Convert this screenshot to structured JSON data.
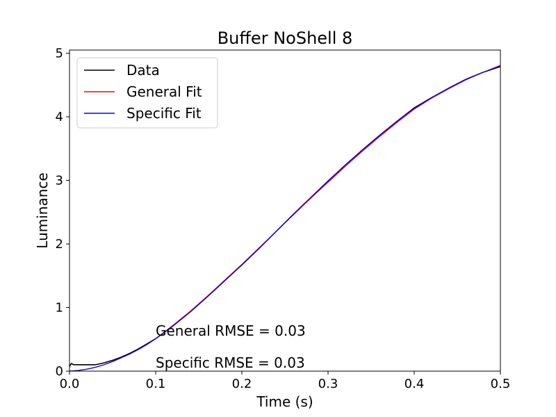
{
  "chart_data": {
    "type": "line",
    "title": "Buffer NoShell 8",
    "xlabel": "Time (s)",
    "ylabel": "Luminance",
    "xlim": [
      0.0,
      0.5
    ],
    "ylim": [
      0,
      5.05
    ],
    "xticks": [
      0.0,
      0.1,
      0.2,
      0.3,
      0.4,
      0.5
    ],
    "xtick_labels": [
      "0.0",
      "0.1",
      "0.2",
      "0.3",
      "0.4",
      "0.5"
    ],
    "yticks": [
      0,
      1,
      2,
      3,
      4,
      5
    ],
    "ytick_labels": [
      "0",
      "1",
      "2",
      "3",
      "4",
      "5"
    ],
    "grid": false,
    "legend_position": "top-left",
    "series": [
      {
        "name": "Data",
        "color": "#000000",
        "x": [
          0.0,
          0.002,
          0.005,
          0.01,
          0.02,
          0.03,
          0.04,
          0.05,
          0.06,
          0.07,
          0.08,
          0.09,
          0.1,
          0.12,
          0.14,
          0.16,
          0.18,
          0.2,
          0.22,
          0.24,
          0.26,
          0.28,
          0.3,
          0.32,
          0.34,
          0.36,
          0.38,
          0.4,
          0.42,
          0.44,
          0.46,
          0.48,
          0.5
        ],
        "y": [
          0.07,
          0.12,
          0.1,
          0.1,
          0.1,
          0.1,
          0.13,
          0.17,
          0.22,
          0.28,
          0.35,
          0.43,
          0.51,
          0.71,
          0.93,
          1.17,
          1.42,
          1.67,
          1.93,
          2.2,
          2.47,
          2.73,
          2.99,
          3.24,
          3.48,
          3.71,
          3.93,
          4.14,
          4.3,
          4.45,
          4.59,
          4.7,
          4.79
        ]
      },
      {
        "name": "General Fit",
        "color": "#ff0000",
        "x": [
          0.0,
          0.01,
          0.02,
          0.03,
          0.04,
          0.05,
          0.06,
          0.07,
          0.08,
          0.09,
          0.1,
          0.12,
          0.14,
          0.16,
          0.18,
          0.2,
          0.22,
          0.24,
          0.26,
          0.28,
          0.3,
          0.32,
          0.34,
          0.36,
          0.38,
          0.4,
          0.42,
          0.44,
          0.46,
          0.48,
          0.5
        ],
        "y": [
          0.0,
          0.01,
          0.03,
          0.06,
          0.1,
          0.15,
          0.21,
          0.27,
          0.34,
          0.42,
          0.51,
          0.72,
          0.94,
          1.18,
          1.43,
          1.68,
          1.94,
          2.2,
          2.46,
          2.72,
          2.97,
          3.22,
          3.46,
          3.69,
          3.91,
          4.12,
          4.29,
          4.44,
          4.58,
          4.7,
          4.81
        ]
      },
      {
        "name": "Specific Fit",
        "color": "#0000ff",
        "x": [
          0.0,
          0.01,
          0.02,
          0.03,
          0.04,
          0.05,
          0.06,
          0.07,
          0.08,
          0.09,
          0.1,
          0.12,
          0.14,
          0.16,
          0.18,
          0.2,
          0.22,
          0.24,
          0.26,
          0.28,
          0.3,
          0.32,
          0.34,
          0.36,
          0.38,
          0.4,
          0.42,
          0.44,
          0.46,
          0.48,
          0.5
        ],
        "y": [
          0.0,
          0.01,
          0.03,
          0.06,
          0.1,
          0.15,
          0.21,
          0.27,
          0.34,
          0.42,
          0.51,
          0.71,
          0.93,
          1.17,
          1.42,
          1.67,
          1.93,
          2.2,
          2.47,
          2.73,
          2.99,
          3.24,
          3.48,
          3.71,
          3.93,
          4.13,
          4.3,
          4.45,
          4.59,
          4.7,
          4.8
        ]
      }
    ],
    "annotations": [
      "General RMSE = 0.03",
      "Specific RMSE = 0.03"
    ]
  }
}
